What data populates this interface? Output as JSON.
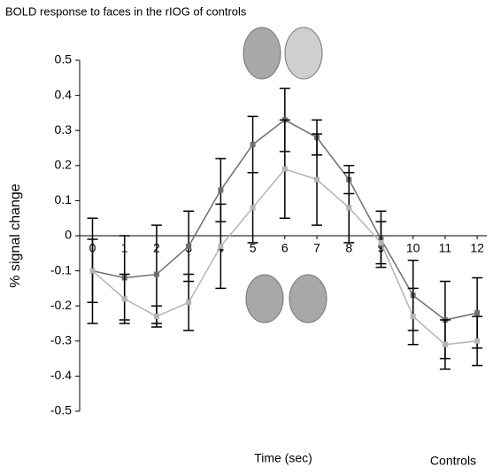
{
  "chart_data": {
    "type": "line",
    "title": "BOLD response to faces in the rIOG of controls",
    "x_label": "Time (sec)",
    "y_label": "% signal change",
    "annotation": "Controls",
    "x": [
      0,
      1,
      2,
      3,
      4,
      5,
      6,
      7,
      8,
      9,
      10,
      11,
      12
    ],
    "series": [
      {
        "color": "#6e6e6e",
        "values": [
          -0.1,
          -0.12,
          -0.11,
          -0.03,
          0.13,
          0.26,
          0.33,
          0.28,
          0.16,
          -0.01,
          -0.17,
          -0.24,
          -0.22
        ],
        "errors": [
          0.09,
          0.12,
          0.14,
          0.1,
          0.09,
          0.08,
          0.09,
          0.05,
          0.04,
          0.08,
          0.1,
          0.11,
          0.1
        ]
      },
      {
        "color": "#b4b4b4",
        "values": [
          -0.1,
          -0.18,
          -0.23,
          -0.19,
          -0.03,
          0.08,
          0.19,
          0.16,
          0.08,
          -0.02,
          -0.23,
          -0.31,
          -0.3
        ],
        "errors": [
          0.15,
          0.07,
          0.03,
          0.08,
          0.12,
          0.1,
          0.14,
          0.13,
          0.1,
          0.06,
          0.08,
          0.07,
          0.07
        ]
      }
    ],
    "xlim": [
      -0.4,
      12.3
    ],
    "xticks": [
      0,
      1,
      2,
      3,
      4,
      5,
      6,
      7,
      8,
      9,
      10,
      11,
      12
    ],
    "ylim": [
      -0.5,
      0.5
    ],
    "yticks": [
      0.5,
      0.4,
      0.3,
      0.2,
      0.1,
      0,
      -0.1,
      -0.2,
      -0.3,
      -0.4,
      -0.5
    ]
  }
}
